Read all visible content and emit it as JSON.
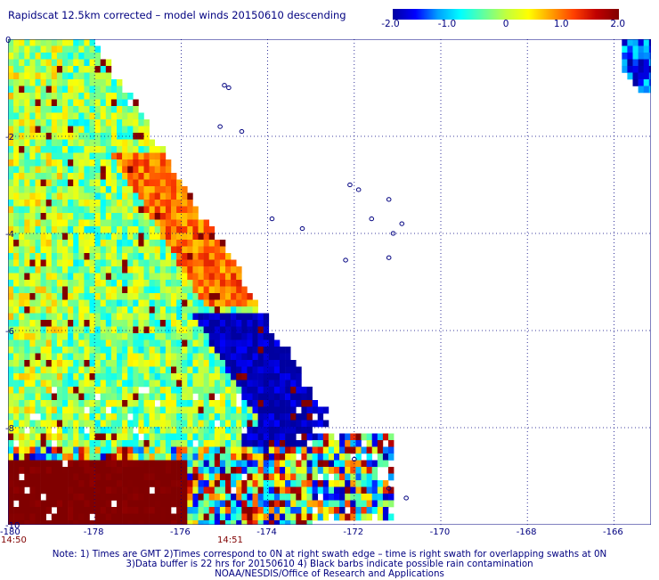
{
  "title": "Rapidscat 12.5km corrected – model winds 20150610 descending",
  "colorbar": {
    "tick_labels": [
      "-2.0",
      "-1.0",
      "0",
      "1.0",
      "2.0"
    ],
    "tick_values": [
      -2.0,
      -1.0,
      0,
      1.0,
      2.0
    ],
    "colors": [
      "#0000a0",
      "#0000ff",
      "#00a0ff",
      "#00ffff",
      "#60ffa0",
      "#c0ff40",
      "#ffff00",
      "#ffa000",
      "#ff4000",
      "#c00000",
      "#800000"
    ],
    "range": [
      -2.0,
      2.0
    ]
  },
  "map": {
    "lon_range": [
      -180,
      -165
    ],
    "lat_range": [
      -10,
      0
    ],
    "x_tick_labels": [
      "-180",
      "-178",
      "-176",
      "-174",
      "-172",
      "-170",
      "-168",
      "-166"
    ],
    "x_tick_values": [
      -180,
      -178,
      -176,
      -174,
      -172,
      -170,
      -168,
      -166
    ],
    "y_tick_labels": [
      "0",
      "-2",
      "-4",
      "-6",
      "-8",
      "-10"
    ],
    "y_tick_values": [
      0,
      -2,
      -4,
      -6,
      -8,
      -10
    ],
    "grid": "dotted",
    "time_labels": [
      {
        "text": "14:50",
        "lon": -180
      },
      {
        "text": "14:51",
        "lon": -175
      }
    ],
    "islands": [
      {
        "lon": -175.0,
        "lat": -0.95
      },
      {
        "lon": -174.9,
        "lat": -1.0
      },
      {
        "lon": -175.1,
        "lat": -1.8
      },
      {
        "lon": -174.6,
        "lat": -1.9
      },
      {
        "lon": -172.1,
        "lat": -3.0
      },
      {
        "lon": -171.9,
        "lat": -3.1
      },
      {
        "lon": -171.2,
        "lat": -3.3
      },
      {
        "lon": -171.6,
        "lat": -3.7
      },
      {
        "lon": -170.9,
        "lat": -3.8
      },
      {
        "lon": -173.9,
        "lat": -3.7
      },
      {
        "lon": -172.2,
        "lat": -4.55
      },
      {
        "lon": -171.2,
        "lat": -4.5
      },
      {
        "lon": -171.1,
        "lat": -4.0
      },
      {
        "lon": -173.2,
        "lat": -3.9
      },
      {
        "lon": -172.0,
        "lat": -8.65
      },
      {
        "lon": -171.2,
        "lat": -9.25
      },
      {
        "lon": -170.8,
        "lat": -9.45
      }
    ]
  },
  "notes": [
    "Note: 1) Times are GMT 2)Times correspond to 0N at right swath edge – time is right swath for overlapping swaths at 0N",
    "3)Data buffer is 22 hrs for 20150610 4) Black barbs indicate possible rain contamination",
    "NOAA/NESDIS/Office of Research and Applications"
  ]
}
